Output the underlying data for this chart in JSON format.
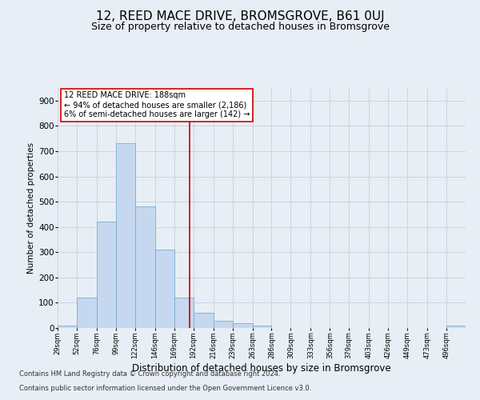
{
  "title": "12, REED MACE DRIVE, BROMSGROVE, B61 0UJ",
  "subtitle": "Size of property relative to detached houses in Bromsgrove",
  "xlabel": "Distribution of detached houses by size in Bromsgrove",
  "ylabel": "Number of detached properties",
  "footnote1": "Contains HM Land Registry data © Crown copyright and database right 2024.",
  "footnote2": "Contains public sector information licensed under the Open Government Licence v3.0.",
  "annotation_line1": "12 REED MACE DRIVE: 188sqm",
  "annotation_line2": "← 94% of detached houses are smaller (2,186)",
  "annotation_line3": "6% of semi-detached houses are larger (142) →",
  "bar_color": "#c5d8ef",
  "bar_edge_color": "#7aadd4",
  "vline_color": "#cc0000",
  "vline_x": 188,
  "bin_edges": [
    29,
    52,
    76,
    99,
    122,
    146,
    169,
    192,
    216,
    239,
    263,
    286,
    309,
    333,
    356,
    379,
    403,
    426,
    449,
    473,
    496
  ],
  "bar_heights": [
    10,
    120,
    420,
    730,
    480,
    310,
    120,
    60,
    30,
    20,
    10,
    0,
    0,
    0,
    0,
    0,
    0,
    0,
    0,
    0,
    10
  ],
  "ylim": [
    0,
    950
  ],
  "yticks": [
    0,
    100,
    200,
    300,
    400,
    500,
    600,
    700,
    800,
    900
  ],
  "background_color": "#e8eef5",
  "plot_bg_color": "#e8eef5",
  "grid_color": "#c8d0dc",
  "title_fontsize": 11,
  "subtitle_fontsize": 9
}
